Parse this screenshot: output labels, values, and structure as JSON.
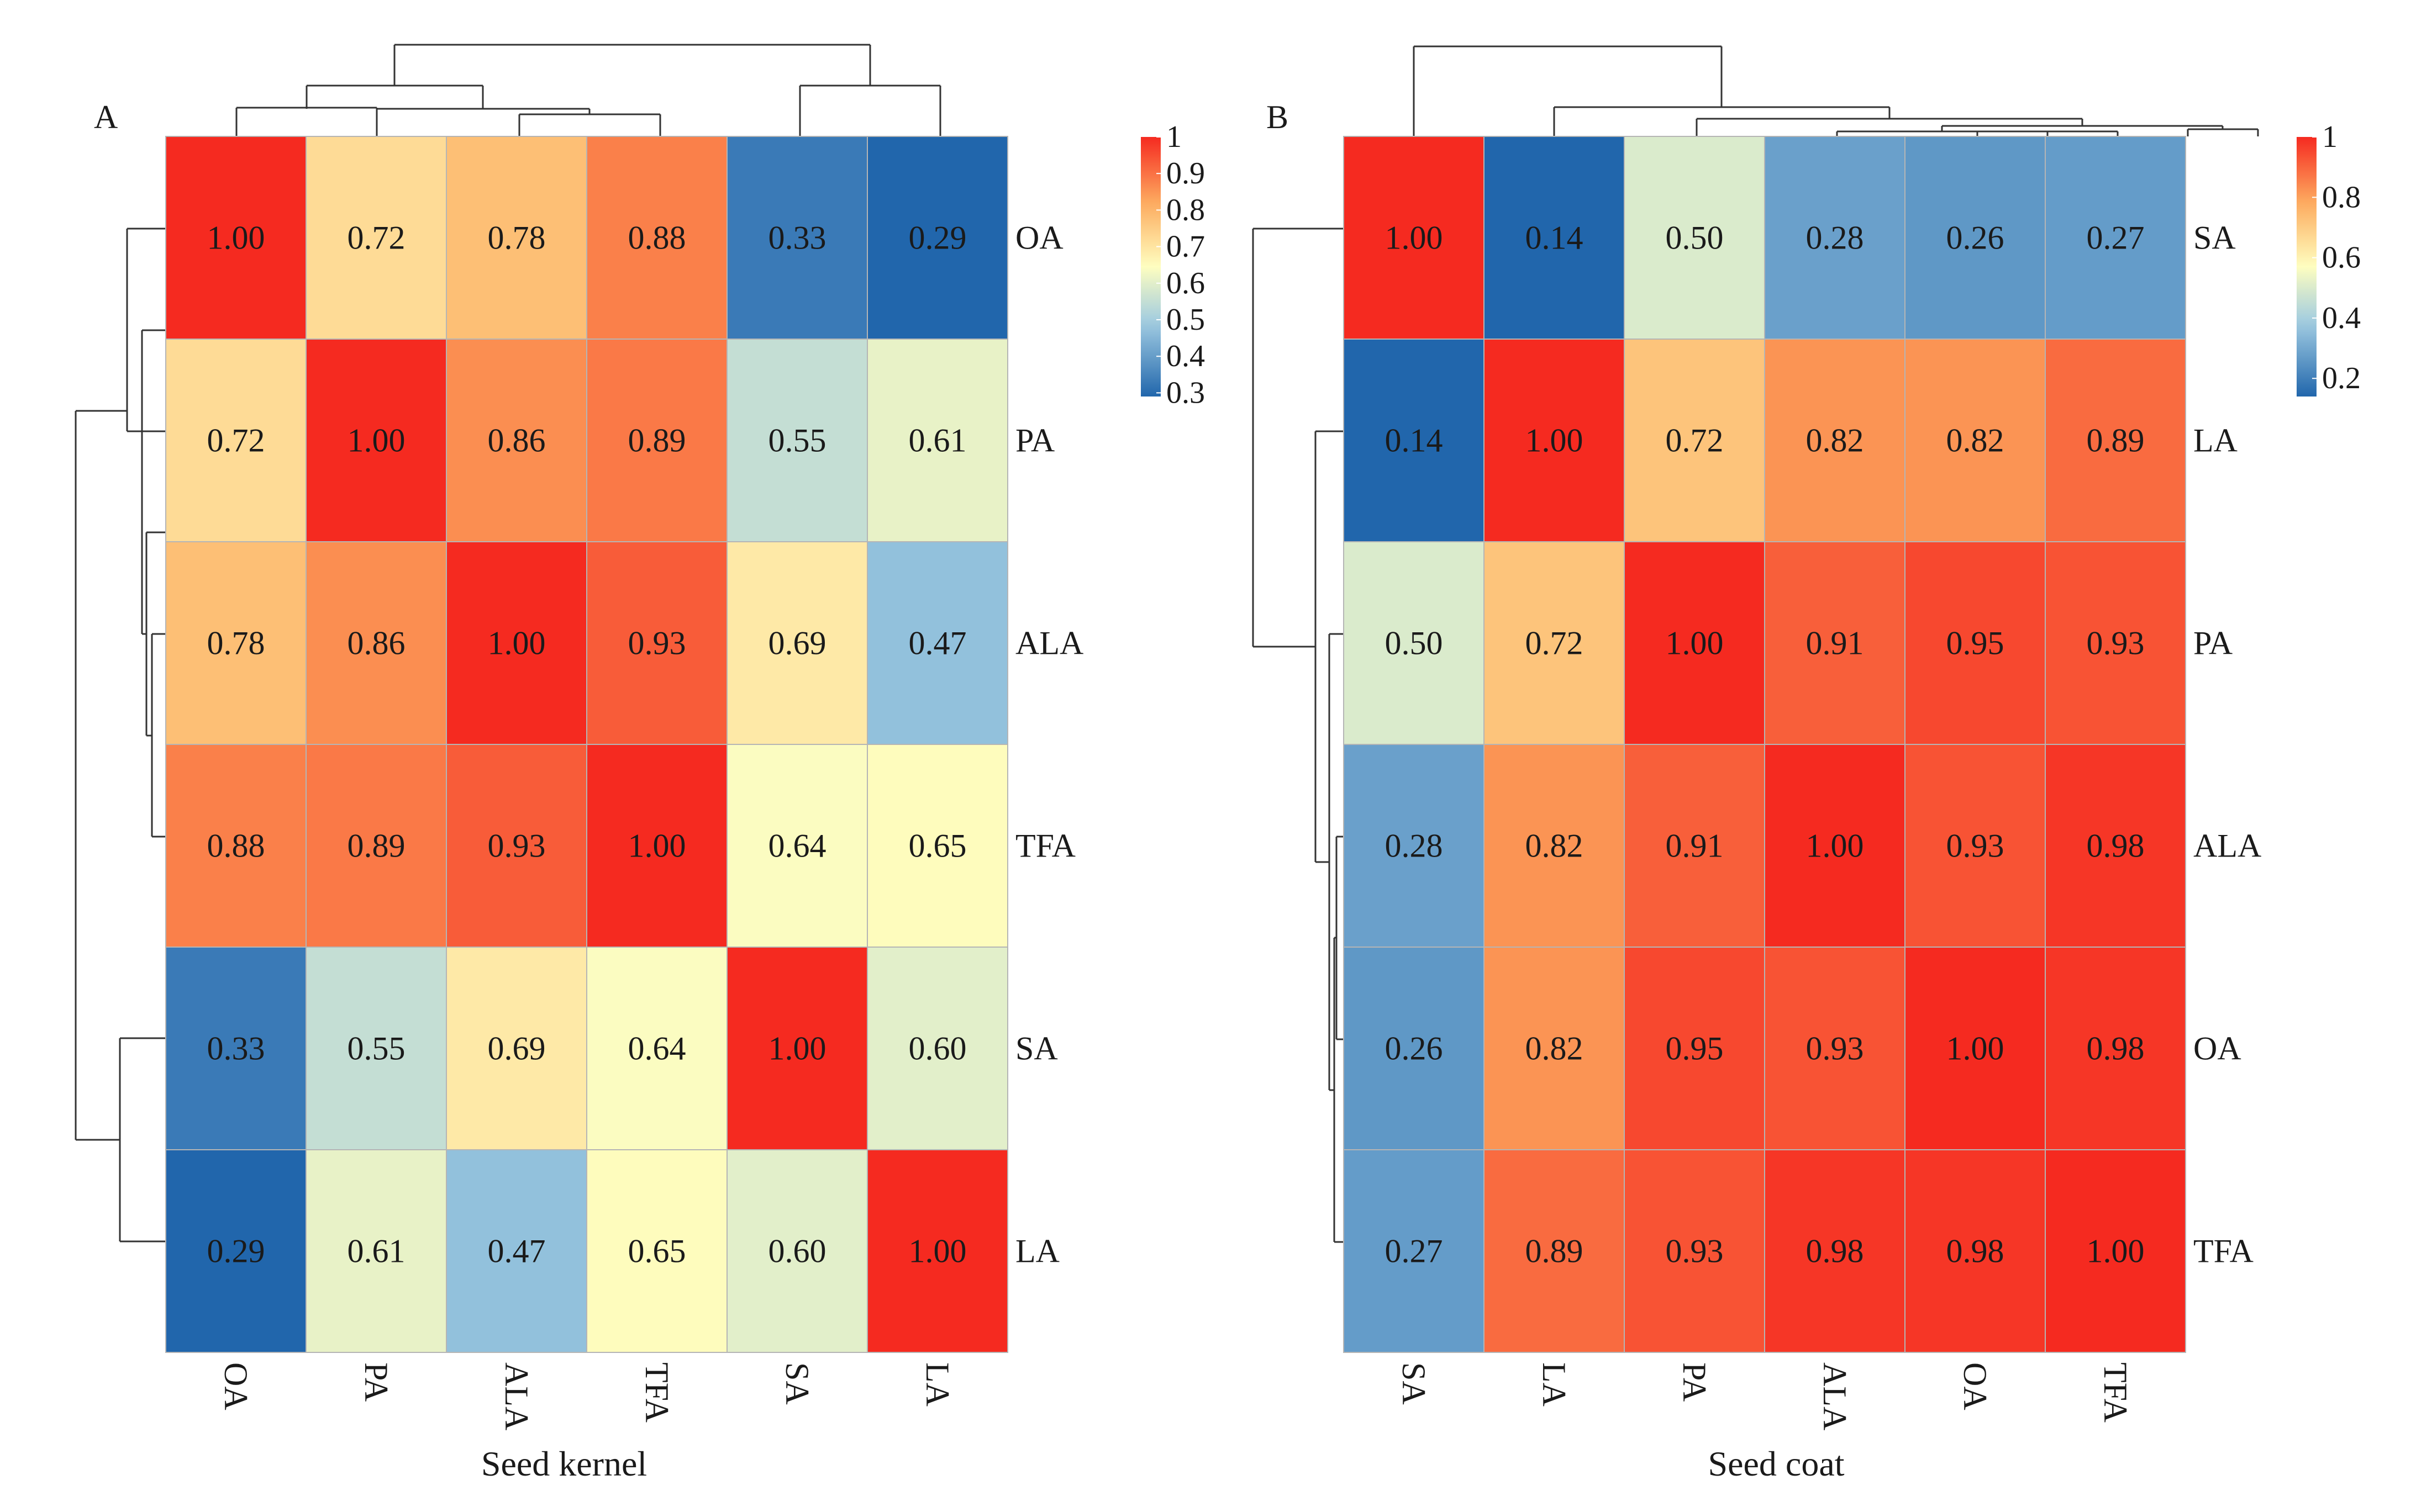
{
  "chart_data": [
    {
      "type": "heatmap",
      "panel_label": "A",
      "xlabel": "Seed kernel",
      "rows": [
        "OA",
        "PA",
        "ALA",
        "TFA",
        "SA",
        "LA"
      ],
      "columns": [
        "OA",
        "PA",
        "ALA",
        "TFA",
        "SA",
        "LA"
      ],
      "values": [
        [
          1.0,
          0.72,
          0.78,
          0.88,
          0.33,
          0.29
        ],
        [
          0.72,
          1.0,
          0.86,
          0.89,
          0.55,
          0.61
        ],
        [
          0.78,
          0.86,
          1.0,
          0.93,
          0.69,
          0.47
        ],
        [
          0.88,
          0.89,
          0.93,
          1.0,
          0.64,
          0.65
        ],
        [
          0.33,
          0.55,
          0.69,
          0.64,
          1.0,
          0.6
        ],
        [
          0.29,
          0.61,
          0.47,
          0.65,
          0.6,
          1.0
        ]
      ],
      "cell_labels": [
        [
          "1.00",
          "0.72",
          "0.78",
          "0.88",
          "0.33",
          "0.29"
        ],
        [
          "0.72",
          "1.00",
          "0.86",
          "0.89",
          "0.55",
          "0.61"
        ],
        [
          "0.78",
          "0.86",
          "1.00",
          "0.93",
          "0.69",
          "0.47"
        ],
        [
          "0.88",
          "0.89",
          "0.93",
          "1.00",
          "0.64",
          "0.65"
        ],
        [
          "0.33",
          "0.55",
          "0.69",
          "0.64",
          "1.00",
          "0.60"
        ],
        [
          "0.29",
          "0.61",
          "0.47",
          "0.65",
          "0.60",
          "1.00"
        ]
      ],
      "colorbar": {
        "range": [
          0.29,
          1.0
        ],
        "ticks": [
          1,
          0.9,
          0.8,
          0.7,
          0.6,
          0.5,
          0.4,
          0.3
        ],
        "tick_labels": [
          "1",
          "0.9",
          "0.8",
          "0.7",
          "0.6",
          "0.5",
          "0.4",
          "0.3"
        ]
      },
      "row_dendrogram": "yes",
      "column_dendrogram": "yes"
    },
    {
      "type": "heatmap",
      "panel_label": "B",
      "xlabel": "Seed coat",
      "rows": [
        "SA",
        "LA",
        "PA",
        "ALA",
        "OA",
        "TFA"
      ],
      "columns": [
        "SA",
        "LA",
        "PA",
        "ALA",
        "OA",
        "TFA"
      ],
      "values": [
        [
          1.0,
          0.14,
          0.5,
          0.28,
          0.26,
          0.27
        ],
        [
          0.14,
          1.0,
          0.72,
          0.82,
          0.82,
          0.89
        ],
        [
          0.5,
          0.72,
          1.0,
          0.91,
          0.95,
          0.93
        ],
        [
          0.28,
          0.82,
          0.91,
          1.0,
          0.93,
          0.98
        ],
        [
          0.26,
          0.82,
          0.95,
          0.93,
          1.0,
          0.98
        ],
        [
          0.27,
          0.89,
          0.93,
          0.98,
          0.98,
          1.0
        ]
      ],
      "cell_labels": [
        [
          "1.00",
          "0.14",
          "0.50",
          "0.28",
          "0.26",
          "0.27"
        ],
        [
          "0.14",
          "1.00",
          "0.72",
          "0.82",
          "0.82",
          "0.89"
        ],
        [
          "0.50",
          "0.72",
          "1.00",
          "0.91",
          "0.95",
          "0.93"
        ],
        [
          "0.28",
          "0.82",
          "0.91",
          "1.00",
          "0.93",
          "0.98"
        ],
        [
          "0.26",
          "0.82",
          "0.95",
          "0.93",
          "1.00",
          "0.98"
        ],
        [
          "0.27",
          "0.89",
          "0.93",
          "0.98",
          "0.98",
          "1.00"
        ]
      ],
      "colorbar": {
        "range": [
          0.14,
          1.0
        ],
        "ticks": [
          1,
          0.8,
          0.6,
          0.4,
          0.2
        ],
        "tick_labels": [
          "1",
          "0.8",
          "0.6",
          "0.4",
          "0.2"
        ]
      },
      "row_dendrogram": "yes",
      "column_dendrogram": "yes"
    }
  ],
  "colors": {
    "low": "#2166ac",
    "mid_low": "#9ecae1",
    "mid": "#fefec0",
    "mid_high": "#fdae61",
    "high": "#f52a20",
    "cell_border": "#b5b5b5",
    "dendrogram": "#333333"
  }
}
